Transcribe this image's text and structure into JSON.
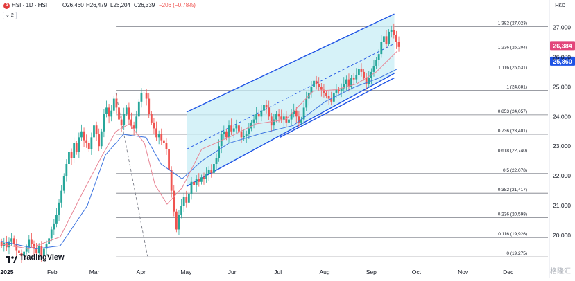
{
  "header": {
    "symbol_badge": "A",
    "title": "HSI · 1D · HSI",
    "open": "O26,460",
    "high": "H26,479",
    "low": "L26,204",
    "close": "C26,339",
    "change": "−206 (−0.78%)",
    "indicator_count": "2",
    "currency": "HKD"
  },
  "branding": {
    "logo_text": "TradingView",
    "watermark": "格隆汇"
  },
  "colors": {
    "up": "#26a69a",
    "down": "#ef5350",
    "channel": "#1e53e5",
    "channel_fill": "#c8eef6",
    "ma_fast": "#e88595",
    "ma_slow": "#3d74e0",
    "price_badge": "#e2457a",
    "level_badge": "#1e53e5"
  },
  "chart_data": {
    "type": "candlestick",
    "y_axis": {
      "range": [
        19000,
        27500
      ],
      "ticks": [
        20000,
        21000,
        22000,
        23000,
        24000,
        25000,
        26000,
        27000
      ],
      "tick_labels": [
        "20,000",
        "21,000",
        "22,000",
        "23,000",
        "24,000",
        "25,000",
        "26,000",
        "27,000"
      ]
    },
    "x_axis": {
      "range": [
        "2025-01-01",
        "2026-01-01"
      ],
      "ticks": [
        "2025-01-01",
        "2025-02-01",
        "2025-03-01",
        "2025-04-01",
        "2025-05-01",
        "2025-06-01",
        "2025-07-01",
        "2025-08-01",
        "2025-09-01",
        "2025-10-01",
        "2025-11-01",
        "2025-12-01"
      ],
      "tick_labels": [
        "2025",
        "Feb",
        "Mar",
        "Apr",
        "May",
        "Jun",
        "Jul",
        "Aug",
        "Sep",
        "Oct",
        "Nov",
        "Dec"
      ]
    },
    "last_price": {
      "value": 26384,
      "label": "26,384"
    },
    "level_marker": {
      "value": 25860,
      "label": "25,860"
    },
    "fib_levels": [
      {
        "value": 27023,
        "label": "1.382 (27,023)"
      },
      {
        "value": 26204,
        "label": "1.236 (26,204)"
      },
      {
        "value": 25531,
        "label": "1.116 (25,531)"
      },
      {
        "value": 24881,
        "label": "1 (24,881)"
      },
      {
        "value": 24057,
        "label": "0.853 (24,057)"
      },
      {
        "value": 23401,
        "label": "0.736 (23,401)"
      },
      {
        "value": 22740,
        "label": "0.618 (22,740)"
      },
      {
        "value": 22078,
        "label": "0.5 (22,078)"
      },
      {
        "value": 21417,
        "label": "0.382 (21,417)"
      },
      {
        "value": 20598,
        "label": "0.236 (20,598)"
      },
      {
        "value": 19926,
        "label": "0.116 (19,926)"
      },
      {
        "value": 19275,
        "label": "0 (19,275)"
      }
    ],
    "fib_range": {
      "start": "2025-03-19",
      "end": "2025-09-23"
    },
    "channel": {
      "upper": [
        [
          "2025-05-05",
          24150
        ],
        [
          "2025-09-20",
          27450
        ]
      ],
      "lower": [
        [
          "2025-05-05",
          21650
        ],
        [
          "2025-09-20",
          25450
        ]
      ],
      "mid": [
        [
          "2025-05-05",
          22900
        ],
        [
          "2025-09-20",
          26450
        ]
      ]
    },
    "trendline": [
      [
        "2025-07-06",
        23300
      ],
      [
        "2025-09-20",
        25300
      ]
    ],
    "decline_line": [
      [
        "2025-03-19",
        24800
      ],
      [
        "2025-04-09",
        19300
      ]
    ],
    "closes": [
      19650,
      19750,
      19600,
      19800,
      19900,
      19700,
      19500,
      19400,
      19300,
      19450,
      19600,
      19850,
      19700,
      19550,
      19400,
      19650,
      19300,
      19550,
      19700,
      19900,
      20200,
      20400,
      20700,
      21100,
      21500,
      22000,
      22400,
      22800,
      22600,
      23100,
      22800,
      23300,
      23500,
      23200,
      23100,
      22900,
      23300,
      23700,
      23400,
      23000,
      23500,
      24100,
      24300,
      24000,
      24200,
      24600,
      24300,
      23900,
      23700,
      24100,
      24300,
      23900,
      23700,
      23600,
      24000,
      24500,
      24800,
      24800,
      24600,
      24100,
      23800,
      23600,
      23300,
      23400,
      23200,
      23100,
      22900,
      22200,
      21500,
      20800,
      20200,
      20700,
      21000,
      21300,
      21100,
      21400,
      21800,
      21700,
      21900,
      21800,
      21950,
      21900,
      22050,
      22200,
      22100,
      22400,
      22600,
      23000,
      23400,
      23500,
      23300,
      23700,
      23500,
      23600,
      23700,
      23500,
      23300,
      23350,
      23400,
      23600,
      23800,
      23900,
      24100,
      24000,
      24200,
      24400,
      24300,
      24000,
      23700,
      23900,
      24100,
      24000,
      23900,
      24000,
      23800,
      23900,
      24100,
      24200,
      24000,
      23800,
      23900,
      24300,
      24600,
      24800,
      25000,
      25200,
      25100,
      25000,
      24900,
      24800,
      24700,
      24600,
      24500,
      24800,
      24900,
      24850,
      24950,
      25100,
      25250,
      25000,
      25300,
      25250,
      25400,
      25600,
      25500,
      25300,
      25100,
      25300,
      25500,
      25700,
      25900,
      26100,
      26500,
      26700,
      26450,
      26850,
      26900,
      26750,
      26500,
      26339
    ],
    "ma_fast": {
      "points": [
        [
          "2025-01-02",
          19700
        ],
        [
          "2025-01-20",
          19550
        ],
        [
          "2025-02-10",
          19950
        ],
        [
          "2025-02-24",
          21350
        ],
        [
          "2025-03-10",
          22700
        ],
        [
          "2025-03-19",
          23500
        ],
        [
          "2025-03-28",
          23750
        ],
        [
          "2025-04-07",
          23100
        ],
        [
          "2025-04-14",
          21700
        ],
        [
          "2025-04-22",
          21050
        ],
        [
          "2025-05-02",
          21600
        ],
        [
          "2025-05-15",
          22900
        ],
        [
          "2025-06-02",
          23300
        ],
        [
          "2025-06-20",
          23750
        ],
        [
          "2025-07-10",
          23900
        ],
        [
          "2025-07-28",
          24850
        ],
        [
          "2025-08-12",
          24900
        ],
        [
          "2025-08-26",
          25100
        ],
        [
          "2025-09-08",
          25500
        ],
        [
          "2025-09-22",
          26200
        ]
      ]
    },
    "ma_slow": {
      "points": [
        [
          "2025-01-02",
          19800
        ],
        [
          "2025-01-25",
          19550
        ],
        [
          "2025-02-10",
          19650
        ],
        [
          "2025-02-28",
          21000
        ],
        [
          "2025-03-12",
          22700
        ],
        [
          "2025-03-24",
          23400
        ],
        [
          "2025-04-08",
          23300
        ],
        [
          "2025-04-18",
          22400
        ],
        [
          "2025-05-02",
          21900
        ],
        [
          "2025-05-15",
          22500
        ],
        [
          "2025-06-02",
          23100
        ],
        [
          "2025-06-25",
          23450
        ],
        [
          "2025-07-15",
          23700
        ],
        [
          "2025-08-05",
          24500
        ],
        [
          "2025-08-25",
          25000
        ],
        [
          "2025-09-10",
          25300
        ],
        [
          "2025-09-22",
          25600
        ]
      ]
    }
  }
}
